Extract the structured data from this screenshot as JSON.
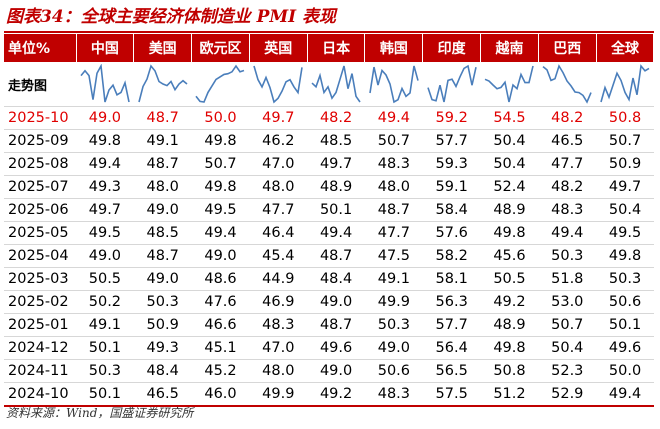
{
  "title": "图表34：全球主要经济体制造业 PMI 表现",
  "header": {
    "unit_label": "单位%",
    "countries": [
      "中国",
      "美国",
      "欧元区",
      "英国",
      "日本",
      "韩国",
      "印度",
      "越南",
      "巴西",
      "全球"
    ]
  },
  "trend_label": "走势图",
  "spark_color": "#4a7ebb",
  "highlight_color": "#e00000",
  "rows": [
    {
      "date": "2025-10",
      "values": [
        "49.0",
        "48.7",
        "50.0",
        "49.7",
        "48.2",
        "49.4",
        "59.2",
        "54.5",
        "48.2",
        "50.8"
      ]
    },
    {
      "date": "2025-09",
      "values": [
        "49.8",
        "49.1",
        "49.8",
        "46.2",
        "48.5",
        "50.7",
        "57.7",
        "50.4",
        "46.5",
        "50.7"
      ]
    },
    {
      "date": "2025-08",
      "values": [
        "49.4",
        "48.7",
        "50.7",
        "47.0",
        "49.7",
        "48.3",
        "59.3",
        "50.4",
        "47.7",
        "50.9"
      ]
    },
    {
      "date": "2025-07",
      "values": [
        "49.3",
        "48.0",
        "49.8",
        "48.0",
        "48.9",
        "48.0",
        "59.1",
        "52.4",
        "48.2",
        "49.7"
      ]
    },
    {
      "date": "2025-06",
      "values": [
        "49.7",
        "49.0",
        "49.5",
        "47.7",
        "50.1",
        "48.7",
        "58.4",
        "48.9",
        "48.3",
        "50.4"
      ]
    },
    {
      "date": "2025-05",
      "values": [
        "49.5",
        "48.5",
        "49.4",
        "46.4",
        "49.4",
        "47.7",
        "57.6",
        "49.8",
        "49.4",
        "49.5"
      ]
    },
    {
      "date": "2025-04",
      "values": [
        "49.0",
        "48.7",
        "49.0",
        "45.4",
        "48.7",
        "47.5",
        "58.2",
        "45.6",
        "50.3",
        "49.8"
      ]
    },
    {
      "date": "2025-03",
      "values": [
        "50.5",
        "49.0",
        "48.6",
        "44.9",
        "48.4",
        "49.1",
        "58.1",
        "50.5",
        "51.8",
        "50.3"
      ]
    },
    {
      "date": "2025-02",
      "values": [
        "50.2",
        "50.3",
        "47.6",
        "46.9",
        "49.0",
        "49.9",
        "56.3",
        "49.2",
        "53.0",
        "50.6"
      ]
    },
    {
      "date": "2025-01",
      "values": [
        "49.1",
        "50.9",
        "46.6",
        "48.3",
        "48.7",
        "50.3",
        "57.7",
        "48.9",
        "50.7",
        "50.1"
      ]
    },
    {
      "date": "2024-12",
      "values": [
        "50.1",
        "49.3",
        "45.1",
        "47.0",
        "49.6",
        "49.0",
        "56.4",
        "49.8",
        "50.4",
        "49.6"
      ]
    },
    {
      "date": "2024-11",
      "values": [
        "50.3",
        "48.4",
        "45.2",
        "48.0",
        "49.0",
        "50.6",
        "56.5",
        "50.8",
        "52.3",
        "50.0"
      ]
    },
    {
      "date": "2024-10",
      "values": [
        "50.1",
        "46.5",
        "46.0",
        "49.9",
        "49.2",
        "48.3",
        "57.5",
        "51.2",
        "52.9",
        "49.4"
      ]
    }
  ],
  "source": "资料来源：Wind，国盛证券研究所"
}
